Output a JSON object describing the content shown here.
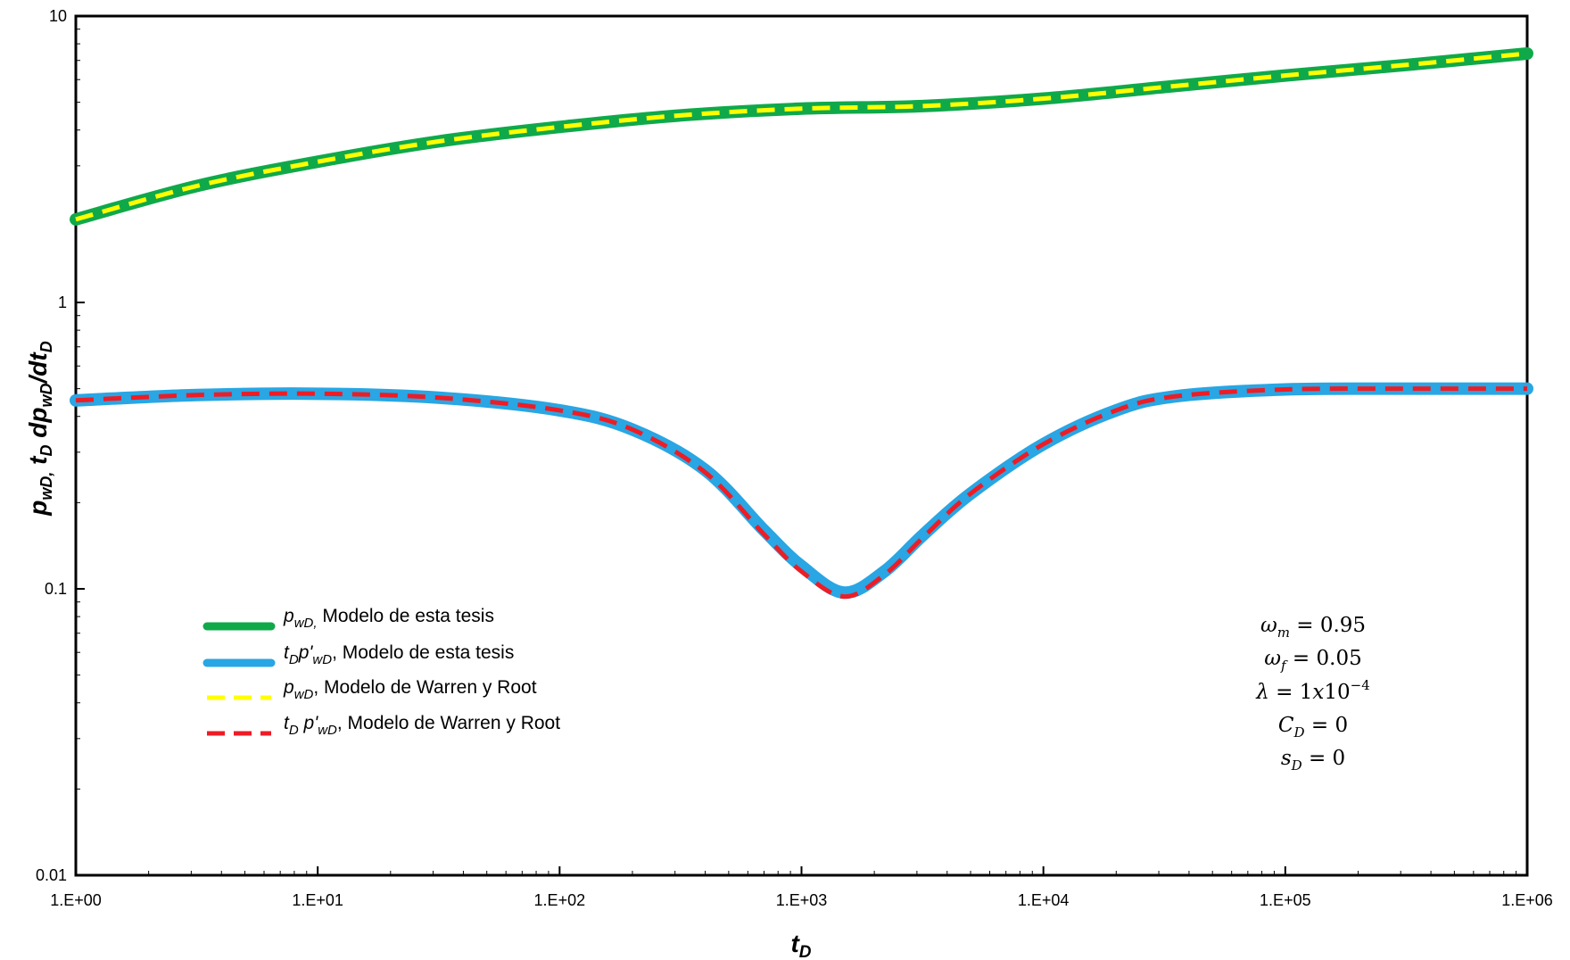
{
  "chart_data": {
    "type": "line",
    "xscale": "log",
    "yscale": "log",
    "xlim": [
      1,
      1000000
    ],
    "ylim": [
      0.01,
      10
    ],
    "xlabel": "tD",
    "ylabel": "pwD, tD dpwD/dtD",
    "x_tick_labels": [
      "1.E+00",
      "1.E+01",
      "1.E+02",
      "1.E+03",
      "1.E+04",
      "1.E+05",
      "1.E+06"
    ],
    "y_tick_labels": [
      "0.01",
      "0.1",
      "1",
      "10"
    ],
    "grid": false,
    "legend_position": "bottom-left",
    "series": [
      {
        "name": "pwD, Modelo de esta tesis",
        "color": "#0fa94a",
        "style": "solid",
        "x": [
          1,
          3.16,
          10,
          31.6,
          100,
          316,
          1000,
          3160,
          10000,
          31600,
          100000,
          316000,
          1000000
        ],
        "y": [
          1.95,
          2.55,
          3.1,
          3.65,
          4.1,
          4.5,
          4.75,
          4.85,
          5.15,
          5.65,
          6.2,
          6.75,
          7.4
        ]
      },
      {
        "name": "tDp'wD, Modelo de esta tesis",
        "color": "#29a6e3",
        "style": "solid",
        "x": [
          1,
          3.16,
          10,
          31.6,
          100,
          200,
          400,
          700,
          1000,
          1500,
          2200,
          3200,
          5000,
          10000,
          20000,
          35000,
          100000,
          316000,
          1000000
        ],
        "y": [
          0.455,
          0.475,
          0.48,
          0.465,
          0.42,
          0.36,
          0.26,
          0.16,
          0.12,
          0.097,
          0.115,
          0.155,
          0.215,
          0.32,
          0.42,
          0.47,
          0.497,
          0.5,
          0.5
        ]
      },
      {
        "name": "pwD, Modelo de Warren y Root",
        "color": "#ffff00",
        "style": "dashed",
        "x": [
          1,
          3.16,
          10,
          31.6,
          100,
          316,
          1000,
          3160,
          10000,
          31600,
          100000,
          316000,
          1000000
        ],
        "y": [
          1.95,
          2.55,
          3.1,
          3.65,
          4.1,
          4.5,
          4.75,
          4.85,
          5.15,
          5.65,
          6.2,
          6.75,
          7.4
        ]
      },
      {
        "name": "tD p'wD, Modelo de Warren y Root",
        "color": "#ee1c25",
        "style": "dashed",
        "x": [
          1,
          3.16,
          10,
          31.6,
          100,
          200,
          400,
          700,
          1000,
          1500,
          2200,
          3200,
          5000,
          10000,
          20000,
          35000,
          100000,
          316000,
          1000000
        ],
        "y": [
          0.455,
          0.475,
          0.48,
          0.465,
          0.42,
          0.36,
          0.255,
          0.155,
          0.115,
          0.094,
          0.112,
          0.152,
          0.215,
          0.32,
          0.42,
          0.47,
          0.497,
          0.5,
          0.5
        ]
      }
    ],
    "annotations": [
      "ωm = 0.95",
      "ωf = 0.05",
      "λ = 1x10⁻⁴",
      "CD = 0",
      "sD = 0"
    ]
  }
}
